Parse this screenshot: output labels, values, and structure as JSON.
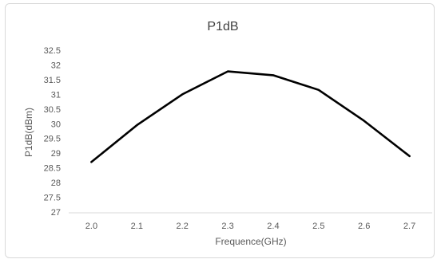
{
  "chart_data": {
    "type": "line",
    "title": "P1dB",
    "xlabel": "Frequence(GHz)",
    "ylabel": "P1dB(dBm)",
    "categories": [
      "2.0",
      "2.1",
      "2.2",
      "2.3",
      "2.4",
      "2.5",
      "2.6",
      "2.7"
    ],
    "y_ticks": [
      "27",
      "27.5",
      "28",
      "28.5",
      "29",
      "29.5",
      "30",
      "30.5",
      "31",
      "31.5",
      "32",
      "32.5"
    ],
    "ylim": [
      27,
      32.5
    ],
    "grid": false,
    "legend": "none",
    "series": [
      {
        "values": [
          28.7,
          29.95,
          31.0,
          31.78,
          31.65,
          31.15,
          30.1,
          28.9
        ],
        "color": "#000000"
      }
    ]
  }
}
